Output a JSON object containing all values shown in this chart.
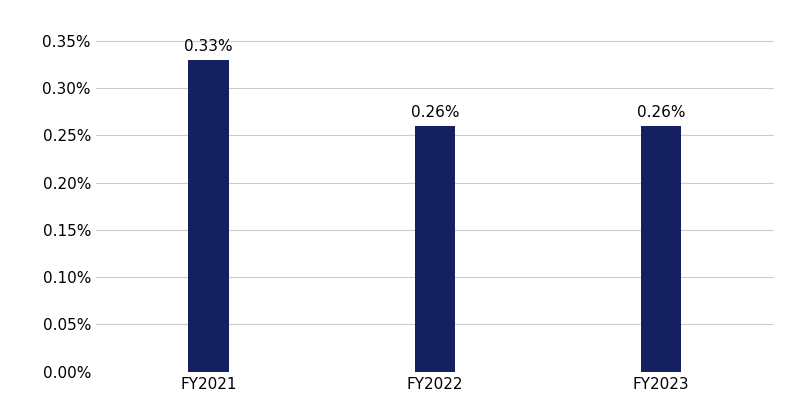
{
  "categories": [
    "FY2021",
    "FY2022",
    "FY2023"
  ],
  "values": [
    0.0033,
    0.0026,
    0.0026
  ],
  "bar_color": "#152060",
  "bar_labels": [
    "0.33%",
    "0.26%",
    "0.26%"
  ],
  "ylim": [
    0,
    0.0038
  ],
  "yticks": [
    0.0,
    0.0005,
    0.001,
    0.0015,
    0.002,
    0.0025,
    0.003,
    0.0035
  ],
  "ytick_labels": [
    "0.00%",
    "0.05%",
    "0.10%",
    "0.15%",
    "0.20%",
    "0.25%",
    "0.30%",
    "0.35%"
  ],
  "background_color": "#ffffff",
  "grid_color": "#cccccc",
  "bar_width": 0.18,
  "tick_fontsize": 11,
  "annotation_fontsize": 11,
  "figwidth": 7.98,
  "figheight": 4.13,
  "dpi": 100
}
